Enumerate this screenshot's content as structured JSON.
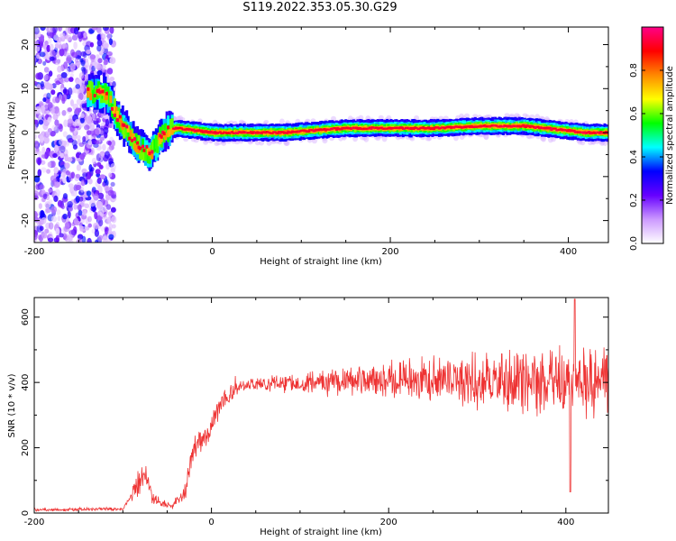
{
  "title": "S119.2022.353.05.30.G29",
  "chart_data": [
    {
      "type": "heatmap",
      "xlabel": "Height of straight line (km)",
      "ylabel": "Frequency (Hz)",
      "xlim": [
        -200,
        445
      ],
      "ylim": [
        -25,
        24
      ],
      "x_ticks": [
        -200,
        0,
        200,
        400
      ],
      "y_ticks": [
        -20,
        -10,
        0,
        10,
        20
      ],
      "colorbar": {
        "label": "Normalized spectral amplitude",
        "range": [
          0,
          1
        ],
        "ticks": [
          "0.0",
          "0.2",
          "0.4",
          "0.6",
          "0.8"
        ],
        "colors": [
          "#ffffff",
          "#cc99ff",
          "#6600ff",
          "#0000ff",
          "#00ffff",
          "#00ff00",
          "#ffff00",
          "#ff8800",
          "#ff0000",
          "#ff0088"
        ]
      },
      "ridge": {
        "points": [
          {
            "x": -140,
            "y": 9
          },
          {
            "x": -120,
            "y": 9
          },
          {
            "x": -105,
            "y": 3
          },
          {
            "x": -85,
            "y": -3
          },
          {
            "x": -70,
            "y": -5
          },
          {
            "x": -55,
            "y": 0
          },
          {
            "x": -40,
            "y": 1
          },
          {
            "x": 0,
            "y": 0
          },
          {
            "x": 80,
            "y": 0
          },
          {
            "x": 150,
            "y": 1
          },
          {
            "x": 250,
            "y": 1
          },
          {
            "x": 300,
            "y": 1.5
          },
          {
            "x": 350,
            "y": 1.5
          },
          {
            "x": 420,
            "y": 0
          },
          {
            "x": 445,
            "y": 0
          }
        ],
        "noise_region_x": [
          -200,
          -115
        ]
      }
    },
    {
      "type": "line",
      "xlabel": "Height of straight line (km)",
      "ylabel": "SNR (10 * v/v)",
      "xlim": [
        -200,
        448
      ],
      "ylim": [
        0,
        660
      ],
      "x_ticks": [
        -200,
        0,
        200,
        400
      ],
      "y_ticks": [
        0,
        200,
        400,
        600
      ],
      "series": [
        {
          "color": "#ee3333",
          "envelope": [
            {
              "x": -200,
              "y": 10
            },
            {
              "x": -100,
              "y": 12
            },
            {
              "x": -85,
              "y": 80
            },
            {
              "x": -75,
              "y": 110
            },
            {
              "x": -65,
              "y": 40
            },
            {
              "x": -45,
              "y": 20
            },
            {
              "x": -30,
              "y": 60
            },
            {
              "x": -20,
              "y": 200
            },
            {
              "x": -5,
              "y": 240
            },
            {
              "x": 10,
              "y": 330
            },
            {
              "x": 25,
              "y": 385
            },
            {
              "x": 50,
              "y": 395
            },
            {
              "x": 100,
              "y": 400
            },
            {
              "x": 150,
              "y": 405
            },
            {
              "x": 200,
              "y": 410
            },
            {
              "x": 250,
              "y": 410
            },
            {
              "x": 300,
              "y": 405
            },
            {
              "x": 350,
              "y": 405
            },
            {
              "x": 400,
              "y": 400
            },
            {
              "x": 448,
              "y": 400
            }
          ],
          "max": {
            "x": 410,
            "y": 655
          },
          "min_dip": {
            "x": 405,
            "y": 65
          }
        }
      ]
    }
  ]
}
